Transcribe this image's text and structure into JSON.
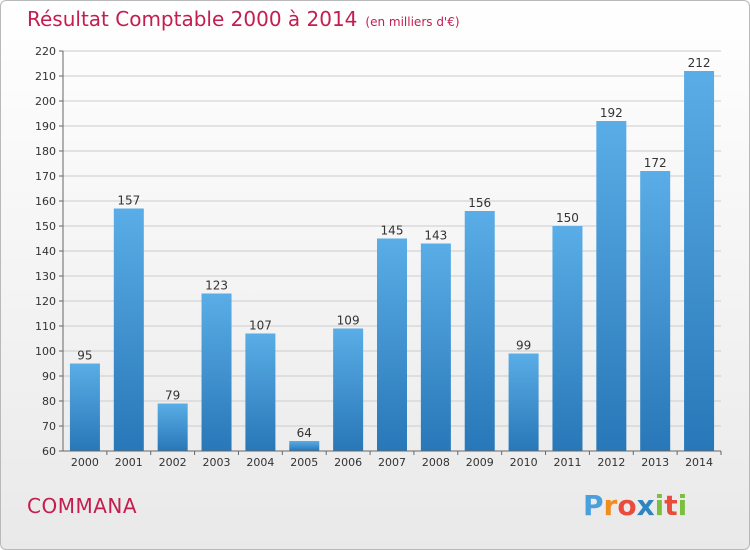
{
  "title": "Résultat Comptable 2000 à 2014",
  "subtitle": "(en milliers d'€)",
  "commune": "COMMANA",
  "logo": {
    "letters": [
      "P",
      "r",
      "o",
      "x",
      "i",
      "t",
      "i"
    ],
    "colors": [
      "#4aa0dc",
      "#f28c1c",
      "#e94b3c",
      "#2e86c1",
      "#7cbf3f",
      "#e94b3c",
      "#7cbf3f"
    ]
  },
  "colors": {
    "bar_top": "#5aade6",
    "bar_bottom": "#2877b8",
    "title": "#c41d4f",
    "grid": "#cccccc"
  },
  "chart_data": {
    "type": "bar",
    "title": "Résultat Comptable 2000 à 2014",
    "subtitle": "(en milliers d'€)",
    "categories": [
      "2000",
      "2001",
      "2002",
      "2003",
      "2004",
      "2005",
      "2006",
      "2007",
      "2008",
      "2009",
      "2010",
      "2011",
      "2012",
      "2013",
      "2014"
    ],
    "values": [
      95,
      157,
      79,
      123,
      107,
      64,
      109,
      145,
      143,
      156,
      99,
      150,
      192,
      172,
      212
    ],
    "ylim": [
      60,
      220
    ],
    "yticks": [
      60,
      70,
      80,
      90,
      100,
      110,
      120,
      130,
      140,
      150,
      160,
      170,
      180,
      190,
      200,
      210,
      220
    ],
    "grid": true,
    "data_labels": true
  }
}
